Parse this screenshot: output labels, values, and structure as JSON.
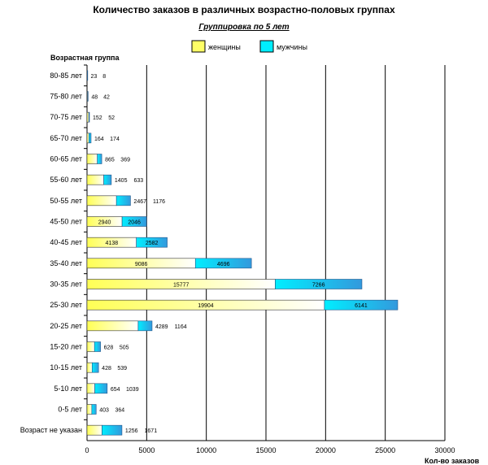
{
  "chart_data": {
    "type": "bar",
    "orientation": "horizontal",
    "stacked": true,
    "title": "Количество заказов в различных возрастно-половых группах",
    "subtitle": "Группировка по 5 лет",
    "ylabel": "Возрастная группа",
    "xlabel": "Кол-во заказов",
    "xlim": [
      0,
      30000
    ],
    "xticks": [
      0,
      5000,
      10000,
      15000,
      20000,
      25000,
      30000
    ],
    "grid": true,
    "legend": "top",
    "categories": [
      "80-85 лет",
      "75-80 лет",
      "70-75 лет",
      "65-70 лет",
      "60-65 лет",
      "55-60 лет",
      "50-55 лет",
      "45-50 лет",
      "40-45 лет",
      "35-40 лет",
      "30-35 лет",
      "25-30 лет",
      "20-25 лет",
      "15-20 лет",
      "10-15 лет",
      "5-10 лет",
      "0-5 лет",
      "Возраст не указан"
    ],
    "series": [
      {
        "name": "женщины",
        "color": "#ffff66",
        "values": [
          23,
          48,
          152,
          164,
          865,
          1405,
          2467,
          2940,
          4138,
          9086,
          15777,
          19904,
          4289,
          628,
          428,
          654,
          403,
          1256
        ]
      },
      {
        "name": "мужчины",
        "color": "#33ddee",
        "values": [
          8,
          42,
          52,
          174,
          369,
          633,
          1176,
          2046,
          2582,
          4696,
          7266,
          6141,
          1164,
          505,
          539,
          1039,
          364,
          1671
        ]
      }
    ]
  }
}
